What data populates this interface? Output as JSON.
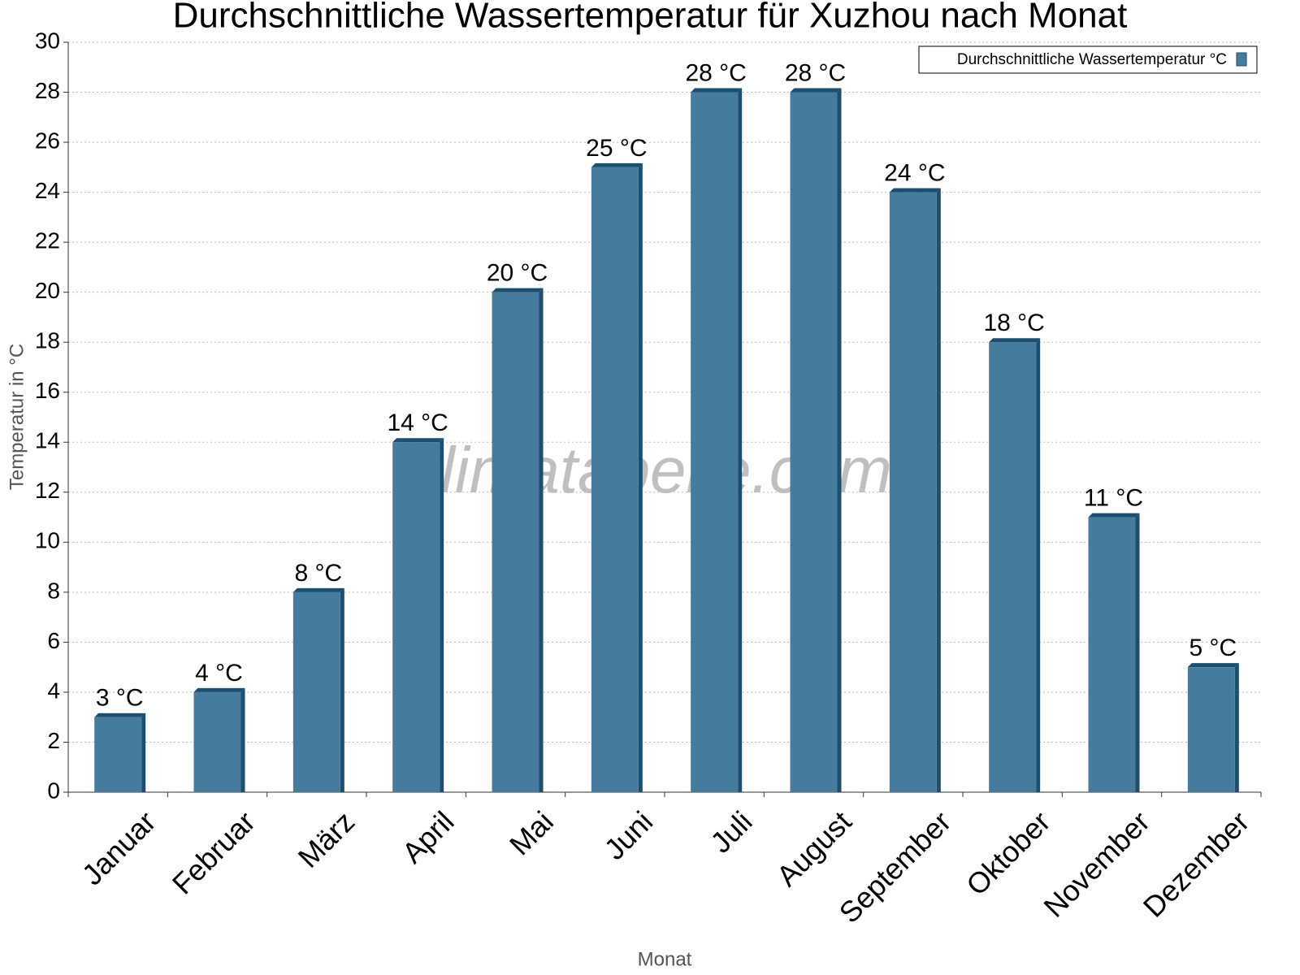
{
  "chart_data": {
    "type": "bar",
    "title": "Durchschnittliche Wassertemperatur für Xuzhou nach Monat",
    "x_label": "Monat",
    "y_label": "Temperatur in °C",
    "watermark": "klimatabelle.com",
    "categories": [
      "Januar",
      "Februar",
      "März",
      "April",
      "Mai",
      "Juni",
      "Juli",
      "August",
      "September",
      "Oktober",
      "November",
      "Dezember"
    ],
    "series": [
      {
        "name": "Durchschnittliche Wassertemperatur °C",
        "color": "#457b9d",
        "values": [
          3,
          4,
          8,
          14,
          20,
          25,
          28,
          28,
          24,
          18,
          11,
          5
        ],
        "value_labels": [
          "3 °C",
          "4 °C",
          "8 °C",
          "14 °C",
          "20 °C",
          "25 °C",
          "28 °C",
          "28 °C",
          "24 °C",
          "18 °C",
          "11 °C",
          "5 °C"
        ]
      }
    ],
    "ylim": [
      0,
      30
    ],
    "yticks": [
      0,
      2,
      4,
      6,
      8,
      10,
      12,
      14,
      16,
      18,
      20,
      22,
      24,
      26,
      28,
      30
    ],
    "grid": true,
    "legend": "top-right"
  }
}
